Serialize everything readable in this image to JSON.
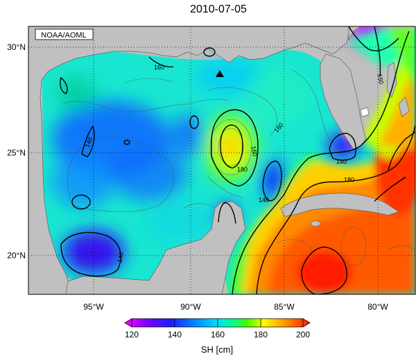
{
  "map": {
    "title": "2010-07-05",
    "source_label": "NOAA/AOML",
    "lat_labels": [
      "30°N",
      "25°N",
      "20°N"
    ],
    "lon_labels": [
      "95°W",
      "90°W",
      "85°W",
      "80°W"
    ],
    "contour_labels": {
      "c160_nw": "160",
      "c140_w": "140",
      "c140_sw": "140",
      "c180_eddy": "180",
      "c160_eddy": "160",
      "c140_yuc": "140",
      "c160_lc": "160",
      "c140_fl": "140",
      "c180_stream": "180",
      "c160_east": "160"
    },
    "colorbar": {
      "ticks": [
        "120",
        "140",
        "160",
        "180",
        "200"
      ],
      "label": "SH [cm]",
      "colors": [
        "#ff00ff",
        "#7a00ff",
        "#1e1eff",
        "#0080ff",
        "#00c8ff",
        "#00ffd0",
        "#00ff80",
        "#40ff00",
        "#c0ff00",
        "#ffff00",
        "#ffc000",
        "#ff7000",
        "#ff2000"
      ]
    }
  }
}
